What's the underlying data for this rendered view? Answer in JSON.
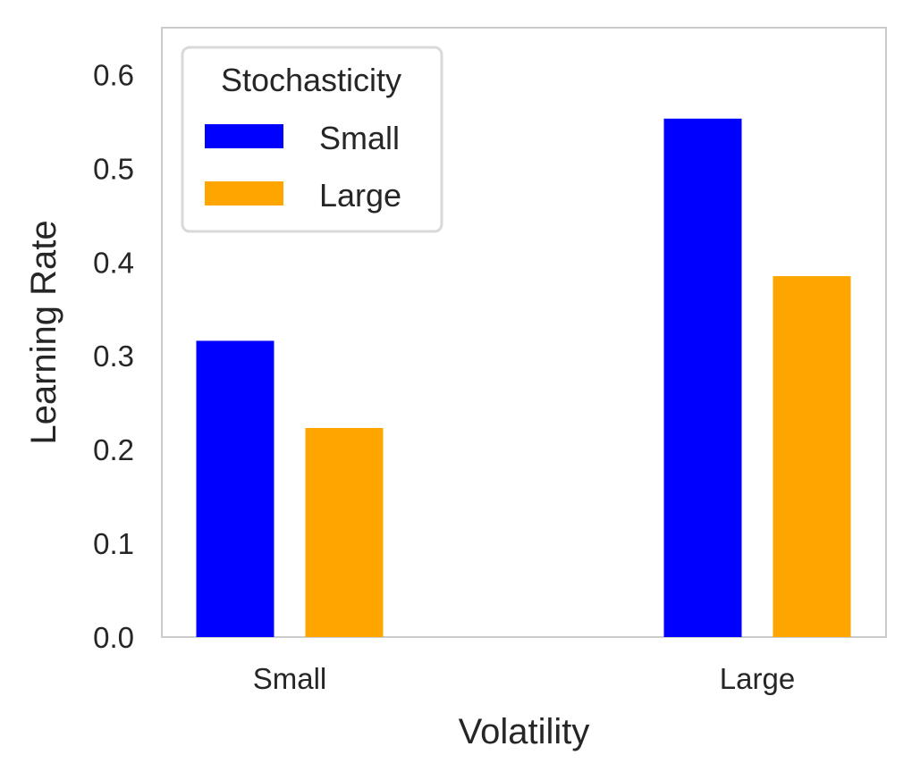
{
  "chart_data": {
    "type": "bar",
    "title": "",
    "xlabel": "Volatility",
    "ylabel": "Learning Rate",
    "categories": [
      "Small",
      "Large"
    ],
    "series": [
      {
        "name": "Small",
        "color": "#0000ff",
        "values": [
          0.316,
          0.553
        ]
      },
      {
        "name": "Large",
        "color": "#ffa500",
        "values": [
          0.223,
          0.385
        ]
      }
    ],
    "ylim": [
      0,
      0.65
    ],
    "yticks": [
      "0.0",
      "0.1",
      "0.2",
      "0.3",
      "0.4",
      "0.5",
      "0.6"
    ],
    "grid": false,
    "legend": {
      "title": "Stochasticity",
      "placement": "top-left"
    }
  }
}
